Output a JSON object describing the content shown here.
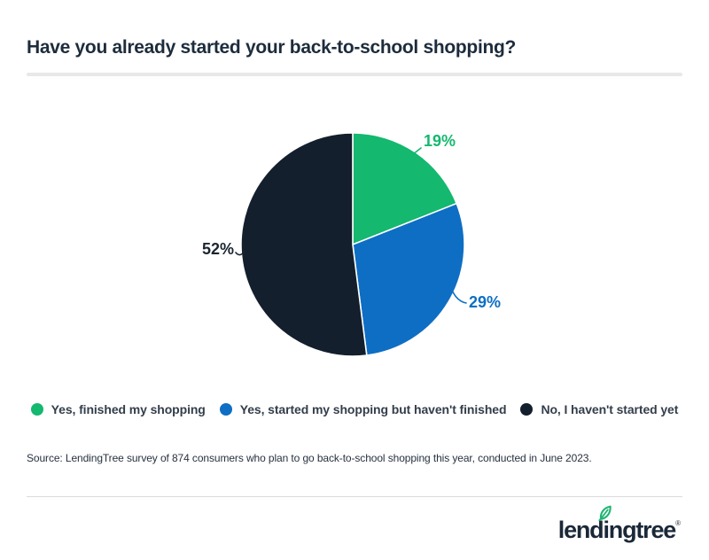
{
  "header": {
    "title": "Have you already started your back-to-school shopping?"
  },
  "chart_data": {
    "type": "pie",
    "title": "Have you already started your back-to-school shopping?",
    "categories": [
      "Yes, finished my shopping",
      "Yes, started my shopping but haven't finished",
      "No, I haven't started yet"
    ],
    "values": [
      19,
      29,
      52
    ],
    "value_labels": [
      "19%",
      "29%",
      "52%"
    ],
    "colors": [
      "#14b86f",
      "#0e6ec4",
      "#141f2d"
    ],
    "label_colors": [
      "#14b86f",
      "#0e6ec4",
      "#1b2531"
    ],
    "start_angle_deg": 0,
    "direction": "clockwise",
    "slice_border_color": "#ffffff",
    "legend_position": "bottom",
    "grid": "off"
  },
  "source": {
    "text": "Source: LendingTree survey of 874 consumers who plan to go back-to-school shopping this year, conducted in June 2023."
  },
  "footer": {
    "logo_text": "lendingtree",
    "registered_mark": "®",
    "leaf_color": "#21b573"
  }
}
